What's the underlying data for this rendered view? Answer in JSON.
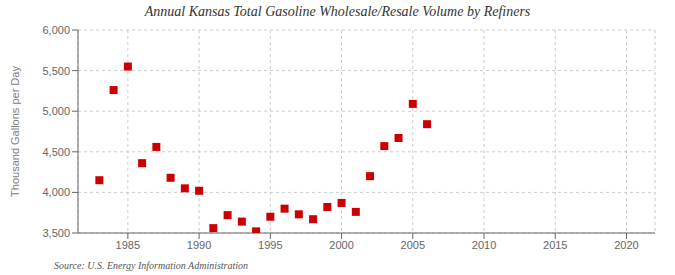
{
  "chart_data": {
    "type": "scatter",
    "title": "Annual Kansas Total Gasoline Wholesale/Resale Volume by Refiners",
    "ylabel": "Thousand Gallons per Day",
    "annotations": [
      "Source: U.S. Energy Information Administration"
    ],
    "x": [
      1983,
      1984,
      1985,
      1986,
      1987,
      1988,
      1989,
      1990,
      1991,
      1992,
      1993,
      1994,
      1995,
      1996,
      1997,
      1998,
      1999,
      2000,
      2001,
      2002,
      2003,
      2004,
      2005,
      2006
    ],
    "values": [
      4150,
      5260,
      5550,
      4360,
      4560,
      4180,
      4050,
      4020,
      3560,
      3720,
      3640,
      3520,
      3700,
      3800,
      3730,
      3670,
      3820,
      3870,
      3760,
      4200,
      4570,
      4670,
      5090,
      4840
    ],
    "color": "#cc0000",
    "marker": "square",
    "xlim": [
      1981.5,
      2022
    ],
    "ylim": [
      3500,
      6000
    ],
    "xticks": [
      1985,
      1990,
      1995,
      2000,
      2005,
      2010,
      2015,
      2020
    ],
    "yticks": [
      {
        "value": 3500,
        "label": "3,500"
      },
      {
        "value": 4000,
        "label": "4,000"
      },
      {
        "value": 4500,
        "label": "4,500"
      },
      {
        "value": 5000,
        "label": "5,000"
      },
      {
        "value": 5500,
        "label": "5,500"
      },
      {
        "value": 6000,
        "label": "6,000"
      }
    ],
    "grid": true
  }
}
